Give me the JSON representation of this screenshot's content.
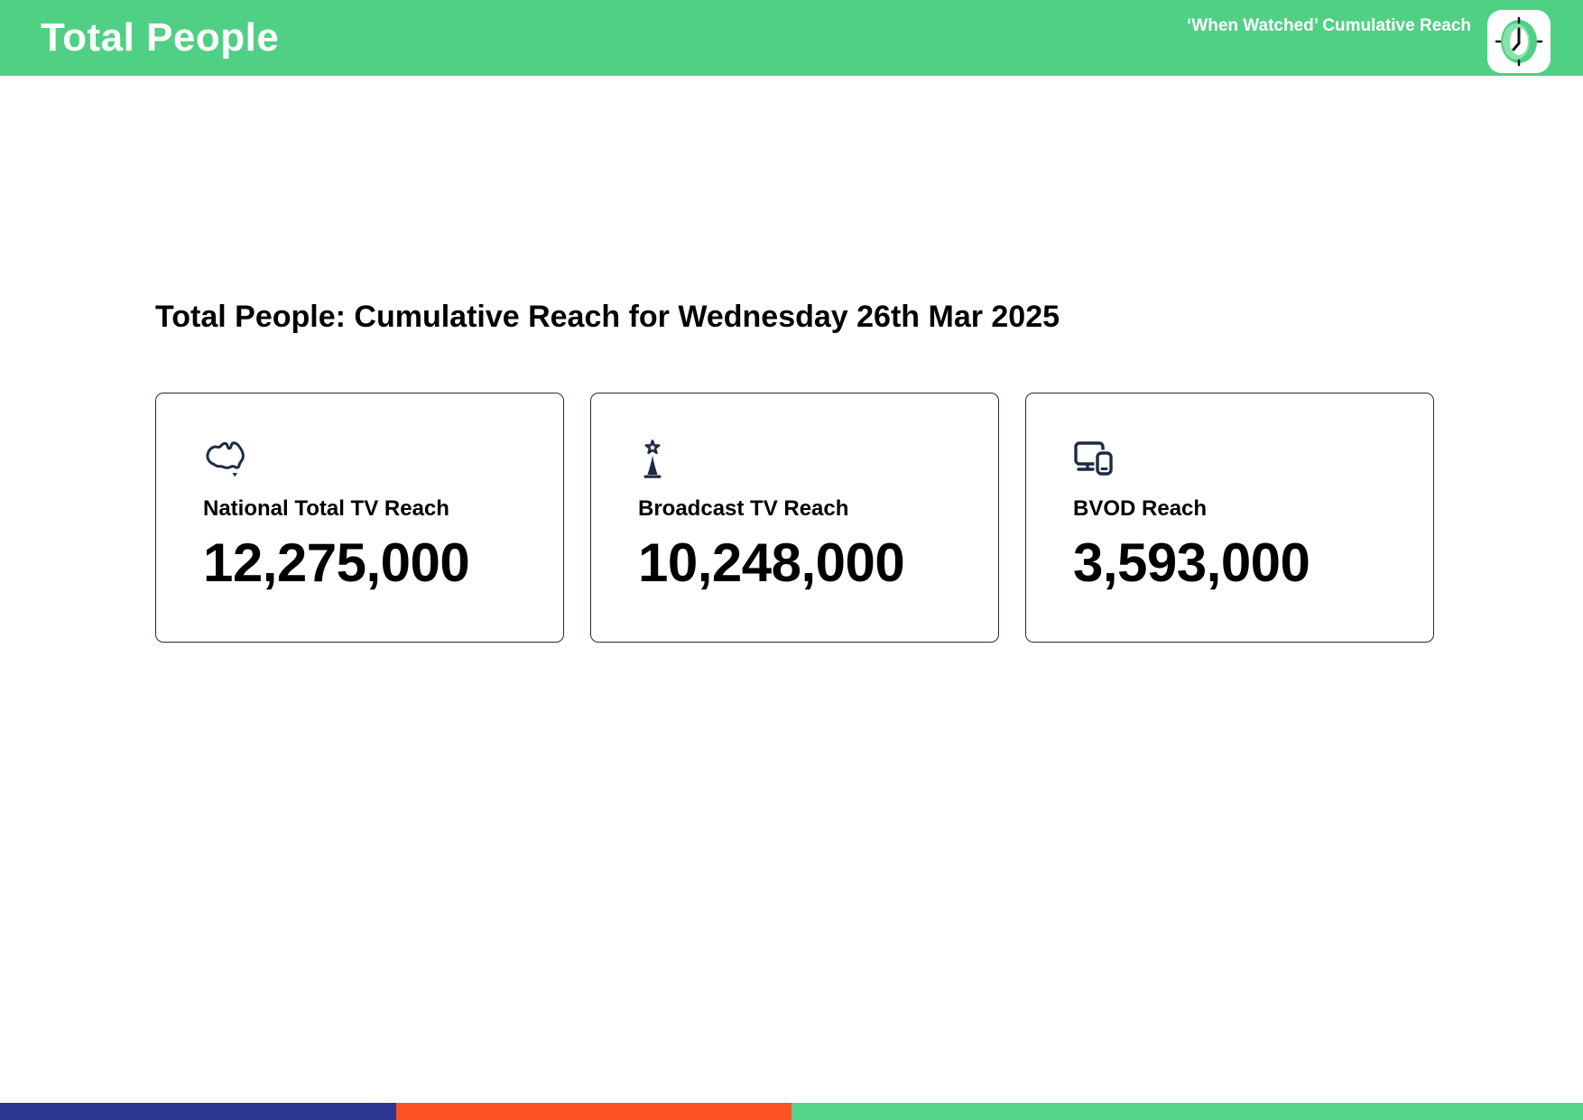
{
  "header": {
    "title": "Total People",
    "right_label": "‘When Watched’ Cumulative Reach",
    "bg_color": "#50d085",
    "icon": "clock-icon"
  },
  "main": {
    "heading": "Total People: Cumulative Reach for Wednesday 26th Mar 2025",
    "cards": [
      {
        "icon": "australia-map-icon",
        "label": "National Total TV Reach",
        "value": "12,275,000"
      },
      {
        "icon": "broadcast-tower-icon",
        "label": "Broadcast TV Reach",
        "value": "10,248,000"
      },
      {
        "icon": "devices-icon",
        "label": "BVOD Reach",
        "value": "3,593,000"
      }
    ],
    "icon_color": "#1e2b45"
  },
  "footer": {
    "segments": [
      {
        "name": "navy",
        "color": "#2d3592",
        "width_pct": 25
      },
      {
        "name": "orange",
        "color": "#fe5223",
        "width_pct": 25
      },
      {
        "name": "green",
        "color": "#53d489",
        "width_pct": 50
      }
    ]
  }
}
